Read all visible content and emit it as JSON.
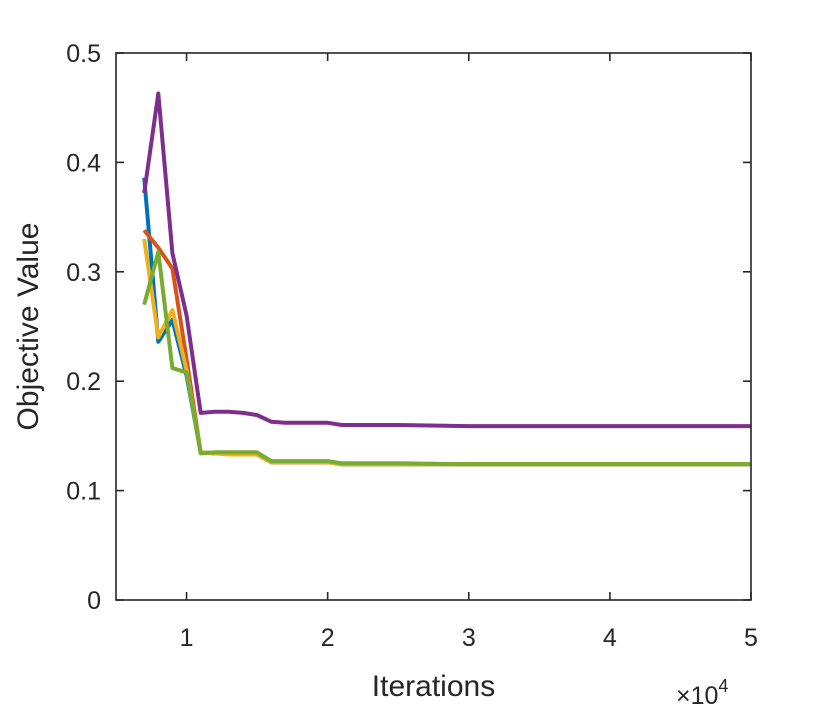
{
  "chart_data": {
    "type": "line",
    "title": "",
    "xlabel": "Iterations",
    "ylabel": "Objective Value",
    "x_exponent_base": "×10",
    "x_exponent_power": "4",
    "xlim": [
      0.5,
      5
    ],
    "ylim": [
      0,
      0.5
    ],
    "xticks": [
      1,
      2,
      3,
      4,
      5
    ],
    "xtick_labels": [
      "1",
      "2",
      "3",
      "4",
      "5"
    ],
    "yticks": [
      0,
      0.1,
      0.2,
      0.3,
      0.4,
      0.5
    ],
    "ytick_labels": [
      "0",
      "0.1",
      "0.2",
      "0.3",
      "0.4",
      "0.5"
    ],
    "grid": false,
    "legend": "none",
    "series": [
      {
        "color": "#0072BD",
        "x": [
          0.7,
          0.8,
          0.9,
          1.0,
          1.1,
          1.2,
          1.3,
          1.4,
          1.5,
          1.6,
          1.7,
          1.8,
          1.9,
          2.0,
          2.1,
          2.5,
          3.0,
          4.0,
          5.0
        ],
        "y": [
          0.386,
          0.236,
          0.256,
          0.205,
          0.135,
          0.134,
          0.134,
          0.133,
          0.133,
          0.126,
          0.126,
          0.126,
          0.126,
          0.126,
          0.124,
          0.124,
          0.124,
          0.124,
          0.124
        ]
      },
      {
        "color": "#D95319",
        "x": [
          0.7,
          0.8,
          0.9,
          1.0,
          1.1,
          1.2,
          1.3,
          1.4,
          1.5,
          1.6,
          1.7,
          1.8,
          1.9,
          2.0,
          2.1,
          2.5,
          3.0,
          4.0,
          5.0
        ],
        "y": [
          0.338,
          0.322,
          0.303,
          0.22,
          0.135,
          0.134,
          0.134,
          0.133,
          0.133,
          0.126,
          0.126,
          0.126,
          0.126,
          0.126,
          0.124,
          0.124,
          0.124,
          0.124,
          0.124
        ]
      },
      {
        "color": "#EDB120",
        "x": [
          0.7,
          0.8,
          0.9,
          1.0,
          1.1,
          1.2,
          1.3,
          1.4,
          1.5,
          1.6,
          1.7,
          1.8,
          1.9,
          2.0,
          2.1,
          2.5,
          3.0,
          4.0,
          5.0
        ],
        "y": [
          0.33,
          0.24,
          0.265,
          0.21,
          0.135,
          0.134,
          0.133,
          0.133,
          0.133,
          0.126,
          0.126,
          0.126,
          0.126,
          0.126,
          0.124,
          0.124,
          0.124,
          0.124,
          0.124
        ]
      },
      {
        "color": "#7E2F8E",
        "x": [
          0.7,
          0.8,
          0.9,
          1.0,
          1.1,
          1.2,
          1.3,
          1.4,
          1.5,
          1.6,
          1.7,
          1.8,
          1.9,
          2.0,
          2.1,
          2.5,
          3.0,
          4.0,
          5.0
        ],
        "y": [
          0.372,
          0.463,
          0.317,
          0.26,
          0.171,
          0.172,
          0.172,
          0.171,
          0.169,
          0.163,
          0.162,
          0.162,
          0.162,
          0.162,
          0.16,
          0.16,
          0.159,
          0.159,
          0.159
        ]
      },
      {
        "color": "#77AC30",
        "x": [
          0.7,
          0.8,
          0.9,
          1.0,
          1.1,
          1.2,
          1.3,
          1.4,
          1.5,
          1.6,
          1.7,
          1.8,
          1.9,
          2.0,
          2.1,
          2.5,
          3.0,
          4.0,
          5.0
        ],
        "y": [
          0.27,
          0.318,
          0.212,
          0.208,
          0.134,
          0.135,
          0.135,
          0.135,
          0.135,
          0.127,
          0.127,
          0.127,
          0.127,
          0.127,
          0.125,
          0.125,
          0.124,
          0.124,
          0.124
        ]
      }
    ]
  }
}
